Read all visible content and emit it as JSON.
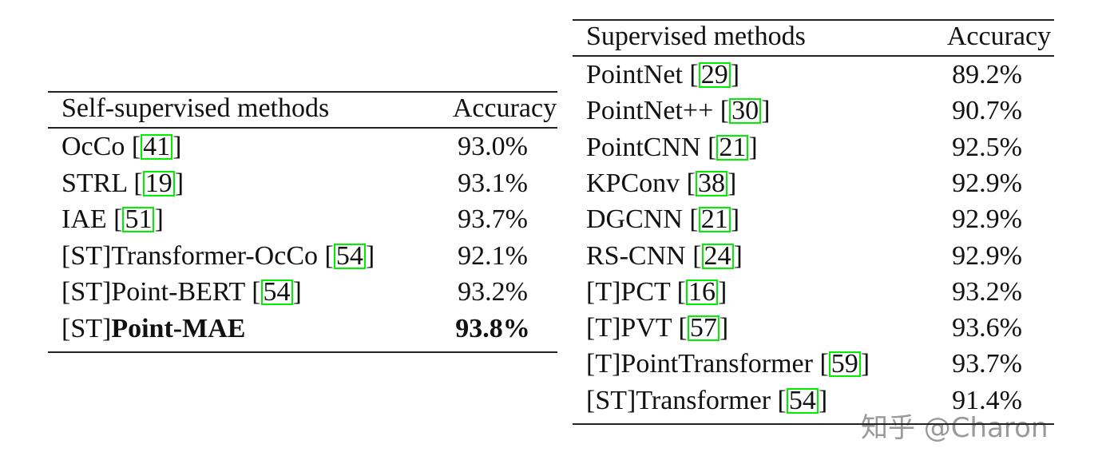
{
  "left_table": {
    "header": [
      "Self-supervised methods",
      "Accuracy"
    ],
    "rows": [
      {
        "method": "OcCo",
        "cite": "41",
        "accuracy": "93.0%"
      },
      {
        "method": "STRL",
        "cite": "19",
        "accuracy": "93.1%"
      },
      {
        "method": "IAE",
        "cite": "51",
        "accuracy": "93.7%"
      },
      {
        "method": "[ST]Transformer-OcCo",
        "cite": "54",
        "accuracy": "92.1%"
      },
      {
        "method": "[ST]Point-BERT",
        "cite": "54",
        "accuracy": "93.2%"
      },
      {
        "method": "[ST]",
        "bold_method": "Point-MAE",
        "accuracy": "93.8%"
      }
    ]
  },
  "right_table": {
    "header": [
      "Supervised methods",
      "Accuracy"
    ],
    "rows": [
      {
        "method": "PointNet",
        "cite": "29",
        "accuracy": "89.2%"
      },
      {
        "method": "PointNet++",
        "cite": "30",
        "accuracy": "90.7%"
      },
      {
        "method": "PointCNN",
        "cite": "21",
        "accuracy": "92.5%"
      },
      {
        "method": "KPConv",
        "cite": "38",
        "accuracy": "92.9%"
      },
      {
        "method": "DGCNN",
        "cite": "21",
        "accuracy": "92.9%"
      },
      {
        "method": "RS-CNN",
        "cite": "24",
        "accuracy": "92.9%"
      },
      {
        "method": "[T]PCT",
        "cite": "16",
        "accuracy": "93.2%"
      },
      {
        "method": "[T]PVT",
        "cite": "57",
        "accuracy": "93.6%"
      },
      {
        "method": "[T]PointTransformer",
        "cite": "59",
        "accuracy": "93.7%"
      },
      {
        "method": "[ST]Transformer",
        "cite": "54",
        "accuracy": "91.4%"
      }
    ]
  },
  "watermark": "知乎 @Charon"
}
